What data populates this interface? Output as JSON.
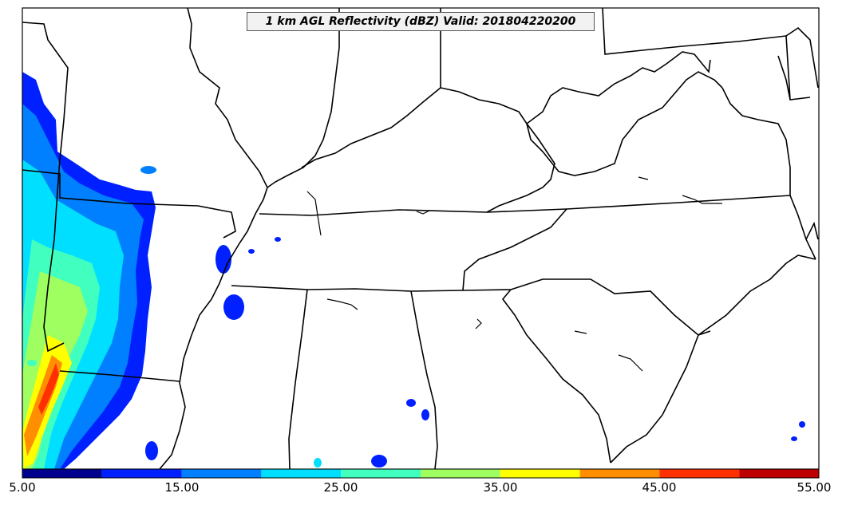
{
  "title": "1 km AGL Reflectivity (dBZ) Valid: 201804220200",
  "colorbar": {
    "labels": [
      "5.00",
      "15.00",
      "25.00",
      "35.00",
      "45.00",
      "55.00"
    ],
    "bins": [
      {
        "from": 5,
        "to": 10,
        "color": "#00008f"
      },
      {
        "from": 10,
        "to": 15,
        "color": "#0020ff"
      },
      {
        "from": 15,
        "to": 20,
        "color": "#0080ff"
      },
      {
        "from": 20,
        "to": 25,
        "color": "#00dfff"
      },
      {
        "from": 25,
        "to": 30,
        "color": "#40ffbf"
      },
      {
        "from": 30,
        "to": 35,
        "color": "#9fff60"
      },
      {
        "from": 35,
        "to": 40,
        "color": "#ffff00"
      },
      {
        "from": 40,
        "to": 45,
        "color": "#ff8f00"
      },
      {
        "from": 45,
        "to": 50,
        "color": "#ff3000"
      },
      {
        "from": 50,
        "to": 55,
        "color": "#bf0000"
      }
    ]
  }
}
